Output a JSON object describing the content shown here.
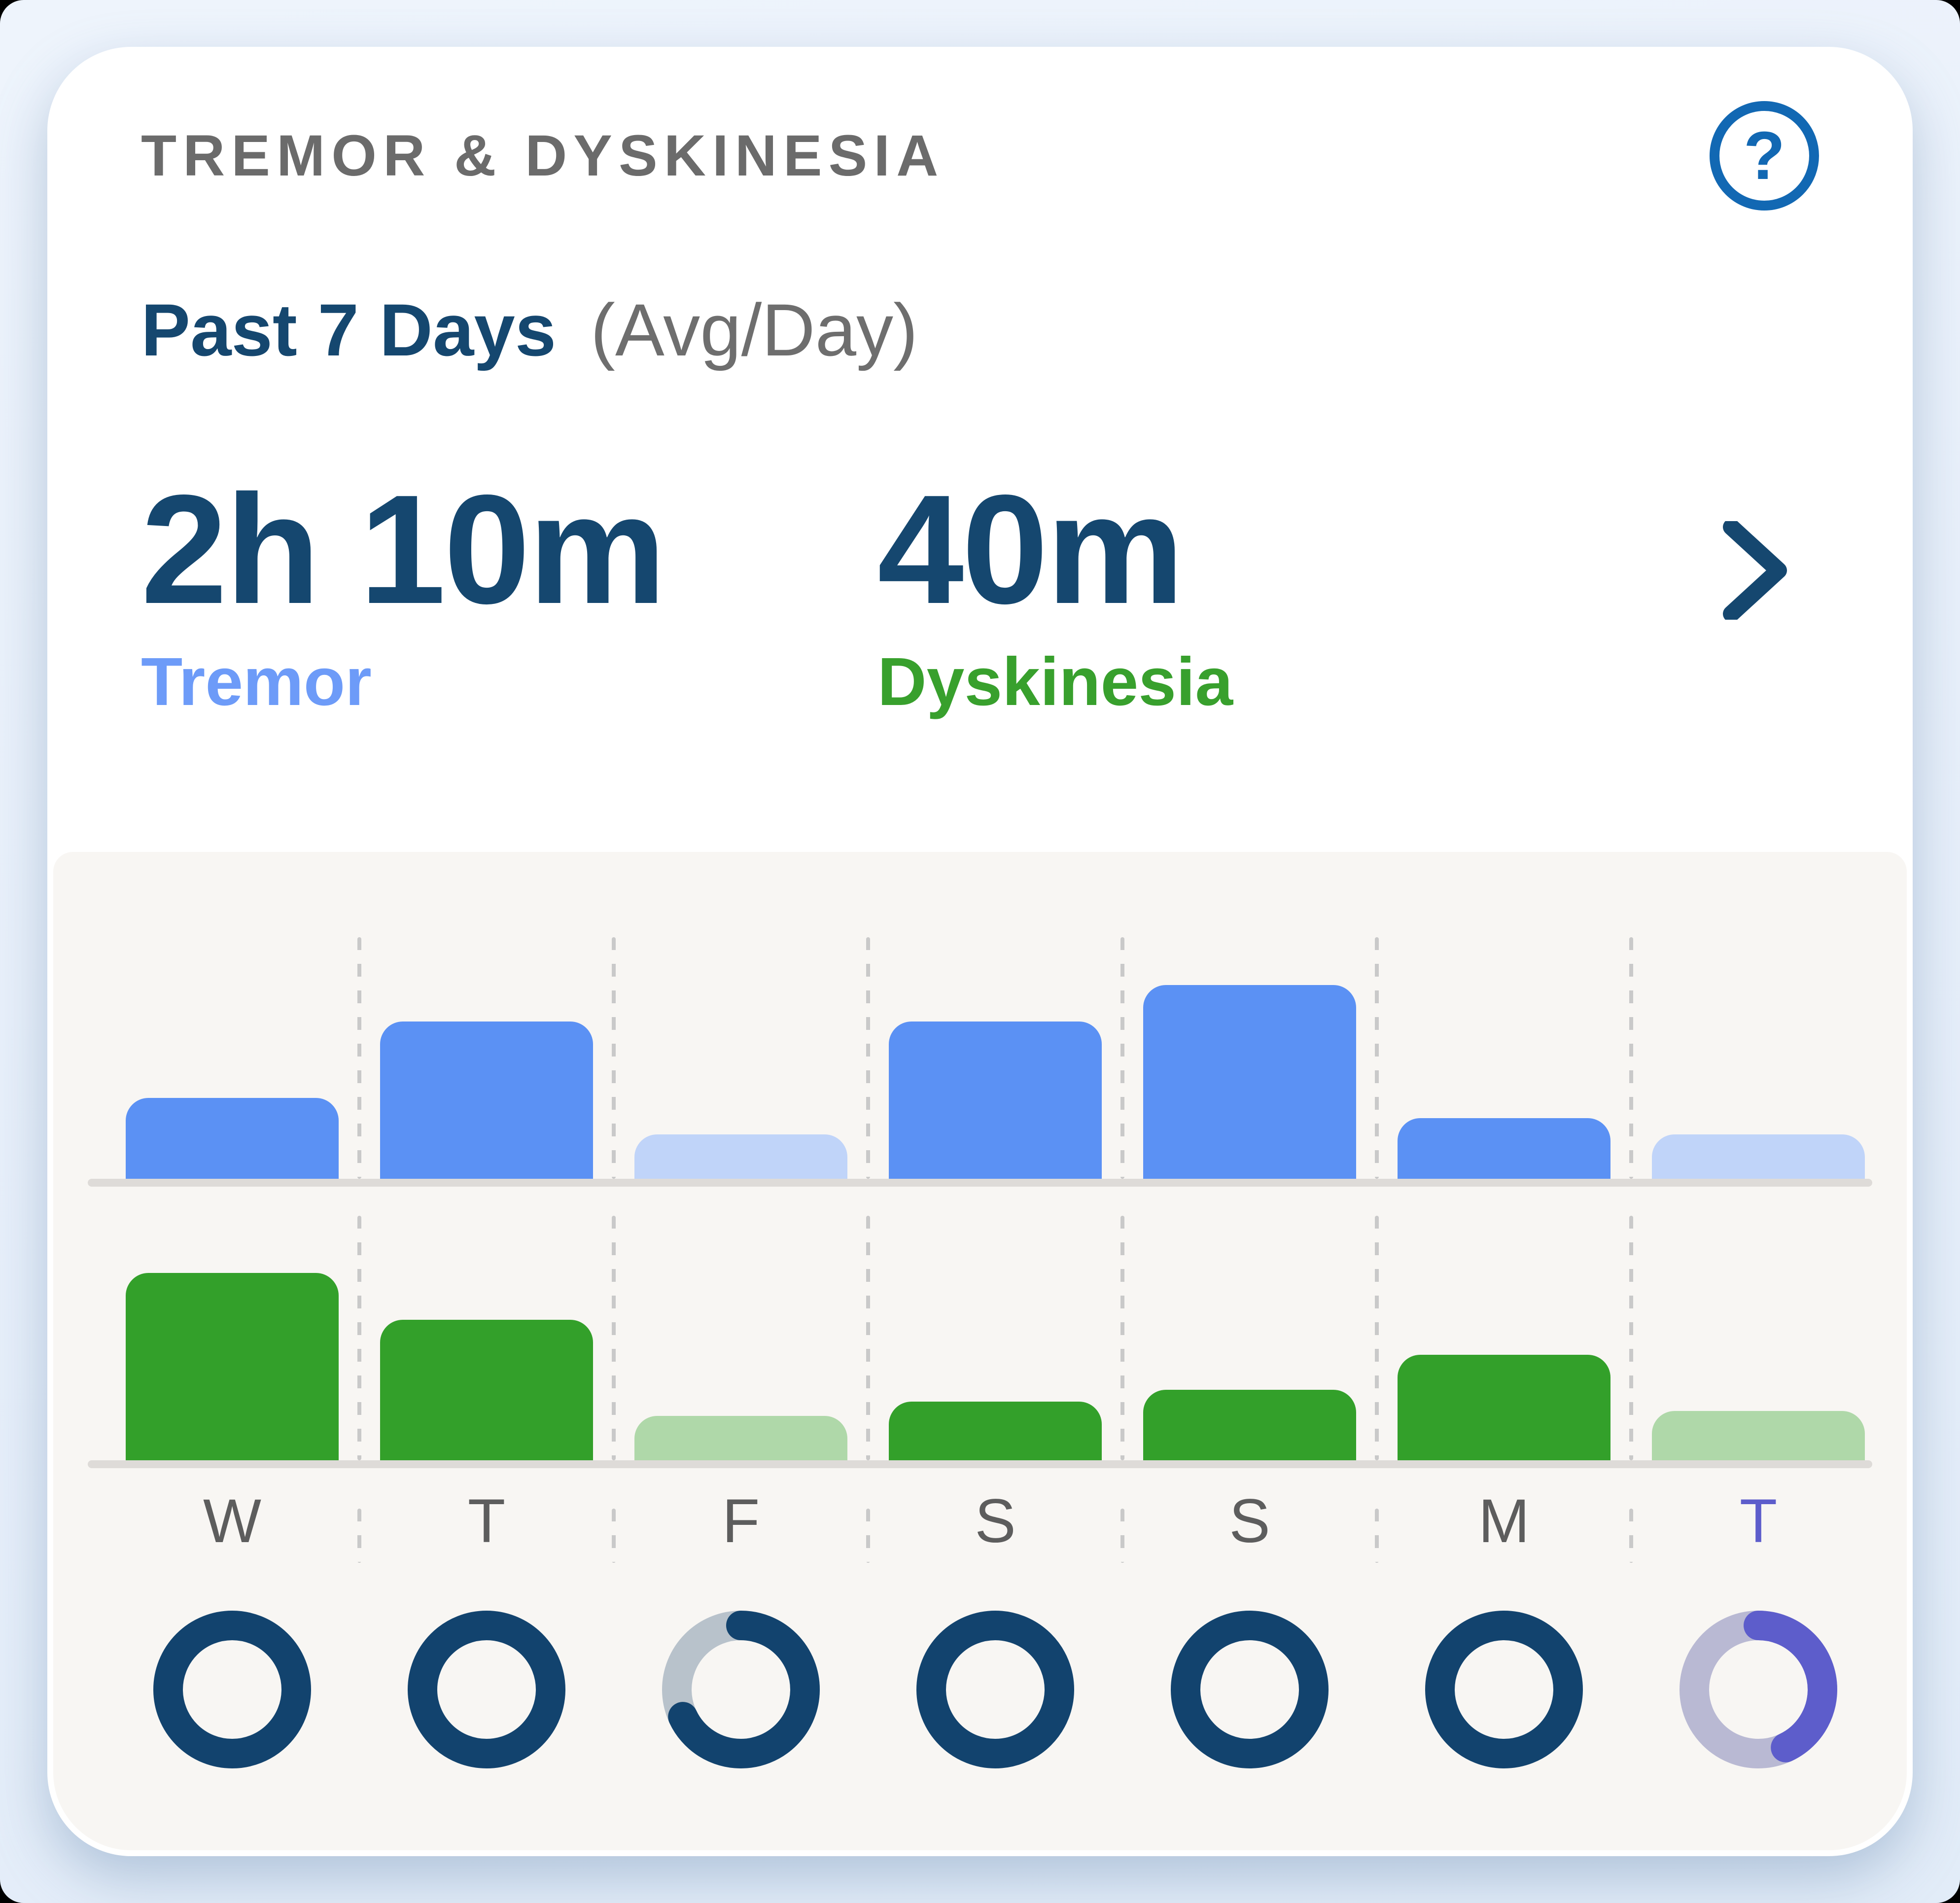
{
  "header": {
    "title": "TREMOR & DYSKINESIA",
    "help_icon": "question-mark-circle-icon",
    "range_label": "Past 7 Days",
    "avg_label": "(Avg/Day)"
  },
  "stats": {
    "tremor": {
      "value": "2h 10m",
      "label": "Tremor"
    },
    "dyskinesia": {
      "value": "40m",
      "label": "Dyskinesia"
    }
  },
  "colors": {
    "accent_blue": "#1268b3",
    "navy": "#15476f",
    "ring_navy": "#12436e",
    "tremor_blue": "#5b91f4",
    "tremor_blue_muted": "#c0d4f9",
    "tremor_label_blue": "#6d9bf8",
    "dyskinesia_green": "#33a02a",
    "dyskinesia_green_muted": "#afd8a9",
    "today_purple": "#5d5dcb",
    "ring_track_gray": "#b8c2cb",
    "ring_track_purple": "#b9b9d3",
    "day_label_gray": "#5d5d5d",
    "chart_bg": "#f8f6f3",
    "baseline_gray": "#dedbd8",
    "card_bg": "#ffffff",
    "page_bg": "#e9f0fa"
  },
  "chart_data": {
    "type": "bar",
    "categories": [
      "W",
      "T",
      "F",
      "S",
      "S",
      "M",
      "T"
    ],
    "today_index": 6,
    "series": [
      {
        "name": "Tremor",
        "unit": "minutes_per_day",
        "values": [
          100,
          195,
          55,
          195,
          240,
          75,
          55
        ],
        "muted": [
          false,
          false,
          true,
          false,
          false,
          false,
          true
        ],
        "ylim": [
          0,
          240
        ]
      },
      {
        "name": "Dyskinesia",
        "unit": "minutes_per_day",
        "values": [
          80,
          60,
          19,
          25,
          30,
          45,
          21
        ],
        "muted": [
          false,
          false,
          true,
          false,
          false,
          false,
          true
        ],
        "ylim": [
          0,
          80
        ]
      }
    ],
    "rings": {
      "name": "daily watch wear completion",
      "completion": [
        1,
        1,
        0.68,
        1,
        1,
        1,
        0.43
      ]
    },
    "legend_position": "none",
    "grid": "dashed-vertical-separators"
  }
}
